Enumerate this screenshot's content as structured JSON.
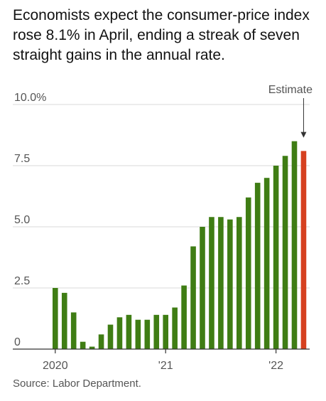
{
  "title": "Economists expect the consumer-price index rose 8.1% in April, ending a streak of seven straight gains in the annual rate.",
  "source": "Source: Labor Department.",
  "chart_data": {
    "type": "bar",
    "categories": [
      "Jan 2020",
      "Feb 2020",
      "Mar 2020",
      "Apr 2020",
      "May 2020",
      "Jun 2020",
      "Jul 2020",
      "Aug 2020",
      "Sep 2020",
      "Oct 2020",
      "Nov 2020",
      "Dec 2020",
      "Jan 2021",
      "Feb 2021",
      "Mar 2021",
      "Apr 2021",
      "May 2021",
      "Jun 2021",
      "Jul 2021",
      "Aug 2021",
      "Sep 2021",
      "Oct 2021",
      "Nov 2021",
      "Dec 2021",
      "Jan 2022",
      "Feb 2022",
      "Mar 2022",
      "Apr 2022"
    ],
    "values": [
      2.5,
      2.3,
      1.5,
      0.3,
      0.1,
      0.6,
      1.0,
      1.3,
      1.4,
      1.2,
      1.2,
      1.4,
      1.4,
      1.7,
      2.6,
      4.2,
      5.0,
      5.4,
      5.4,
      5.3,
      5.4,
      6.2,
      6.8,
      7.0,
      7.5,
      7.9,
      8.5,
      8.1
    ],
    "estimate_index": 27,
    "annotation": "Estimate",
    "ylim": [
      0,
      10
    ],
    "yticks": [
      0,
      2.5,
      5.0,
      7.5,
      10.0
    ],
    "ytick_labels": [
      "0",
      "2.5",
      "5.0",
      "7.5",
      "10.0%"
    ],
    "xtick_labels": [
      {
        "label": "2020",
        "index": 0
      },
      {
        "label": "'21",
        "index": 12
      },
      {
        "label": "'22",
        "index": 24
      }
    ],
    "colors": {
      "actual": "#3f7d14",
      "estimate": "#d6401f",
      "grid": "#d8d8d8",
      "axis": "#333333"
    },
    "grid": true
  }
}
